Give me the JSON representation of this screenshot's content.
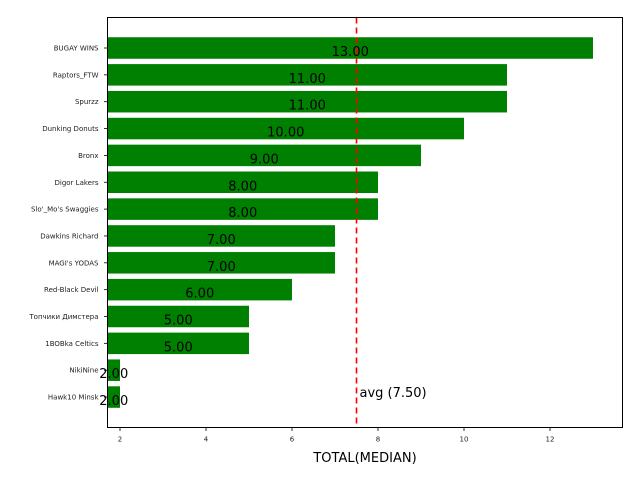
{
  "chart_data": {
    "type": "bar",
    "orientation": "horizontal",
    "title": "",
    "xlabel": "TOTAL(MEDIAN)",
    "ylabel": "",
    "categories": [
      "BUGAY WINS",
      "Raptors_FTW",
      "Spurzz",
      "Dunking Donuts",
      "Bronx",
      "Digor Lakers",
      "Slo'_Mo's Swaggies",
      "Dawkins Richard",
      "MAGI's YODAS",
      "Red-Black Devil",
      "Топчики Димстера",
      "1BOBka Celtics",
      "NikiNine",
      "Hawk10 Minsk"
    ],
    "values": [
      13.0,
      11.0,
      11.0,
      10.0,
      9.0,
      8.0,
      8.0,
      7.0,
      7.0,
      6.0,
      5.0,
      5.0,
      2.0,
      2.0
    ],
    "value_labels": [
      "13.00",
      "11.00",
      "11.00",
      "10.00",
      "9.00",
      "8.00",
      "8.00",
      "7.00",
      "7.00",
      "6.00",
      "5.00",
      "5.00",
      "2.00",
      "2.00"
    ],
    "xlim": [
      1.7,
      13.7
    ],
    "xticks": [
      2,
      4,
      6,
      8,
      10,
      12
    ],
    "xtick_labels": [
      "2",
      "4",
      "6",
      "8",
      "10",
      "12"
    ],
    "bar_color": "#008000",
    "grid": false,
    "reference_line": {
      "value": 7.5,
      "label": "avg (7.50)",
      "color": "#ff0000",
      "style": "dashed"
    }
  }
}
